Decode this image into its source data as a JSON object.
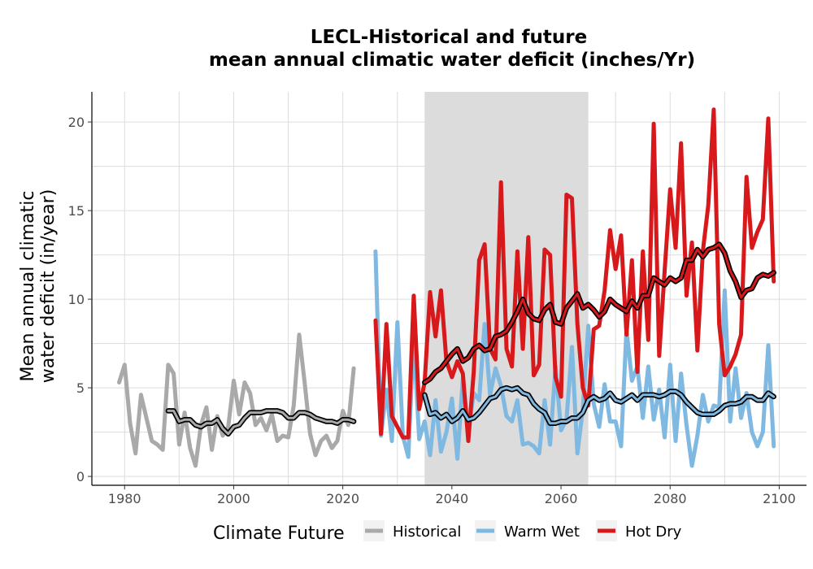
{
  "chart_data": {
    "type": "line",
    "title": "LECL-Historical and future",
    "subtitle": "mean annual climatic water deficit (inches/Yr)",
    "xlabel": "",
    "ylabel_line1": "Mean annual climatic",
    "ylabel_line2": "water deficit (in/year)",
    "xlim": [
      1974,
      2105
    ],
    "ylim": [
      -0.5,
      21.7
    ],
    "x_ticks": [
      1980,
      2000,
      2020,
      2040,
      2060,
      2080,
      2100
    ],
    "y_ticks": [
      0,
      5,
      10,
      15,
      20
    ],
    "grid": true,
    "shaded_period": [
      2035,
      2065
    ],
    "legend": {
      "title": "Climate Future",
      "position": "bottom",
      "entries": [
        "Historical",
        "Warm Wet",
        "Hot Dry"
      ]
    },
    "colors": {
      "Historical": "#a9a9a9",
      "Warm Wet": "#7fb8e0",
      "Hot Dry": "#d7191c",
      "smooth": "#000000",
      "shade": "#dcdcdc"
    },
    "series": [
      {
        "name": "Historical",
        "x": [
          1979,
          1980,
          1981,
          1982,
          1983,
          1984,
          1985,
          1986,
          1987,
          1988,
          1989,
          1990,
          1991,
          1992,
          1993,
          1994,
          1995,
          1996,
          1997,
          1998,
          1999,
          2000,
          2001,
          2002,
          2003,
          2004,
          2005,
          2006,
          2007,
          2008,
          2009,
          2010,
          2011,
          2012,
          2013,
          2014,
          2015,
          2016,
          2017,
          2018,
          2019,
          2020,
          2021,
          2022
        ],
        "values": [
          5.3,
          6.3,
          3.0,
          1.3,
          4.6,
          3.3,
          2.0,
          1.8,
          1.5,
          6.3,
          5.8,
          1.8,
          3.6,
          1.6,
          0.6,
          2.9,
          3.9,
          1.5,
          3.4,
          2.3,
          2.8,
          5.4,
          3.5,
          5.3,
          4.7,
          2.9,
          3.3,
          2.6,
          3.5,
          2.0,
          2.3,
          2.2,
          4.0,
          8.0,
          5.3,
          2.4,
          1.2,
          2.0,
          2.3,
          1.6,
          2.0,
          3.7,
          2.9,
          6.1
        ]
      },
      {
        "name": "Historical",
        "smooth": true,
        "x": [
          1988,
          1989,
          1990,
          1991,
          1992,
          1993,
          1994,
          1995,
          1996,
          1997,
          1998,
          1999,
          2000,
          2001,
          2002,
          2003,
          2004,
          2005,
          2006,
          2007,
          2008,
          2009,
          2010,
          2011,
          2012,
          2013,
          2014,
          2015,
          2016,
          2017,
          2018,
          2019,
          2020,
          2021,
          2022
        ],
        "values": [
          3.7,
          3.7,
          3.1,
          3.2,
          3.2,
          2.9,
          2.8,
          3.0,
          3.0,
          3.2,
          2.7,
          2.4,
          2.8,
          2.9,
          3.3,
          3.6,
          3.6,
          3.6,
          3.7,
          3.7,
          3.7,
          3.6,
          3.3,
          3.3,
          3.6,
          3.6,
          3.5,
          3.3,
          3.2,
          3.1,
          3.1,
          3.0,
          3.2,
          3.2,
          3.1
        ]
      },
      {
        "name": "Warm Wet",
        "x": [
          2026,
          2027,
          2028,
          2029,
          2030,
          2031,
          2032,
          2033,
          2034,
          2035,
          2036,
          2037,
          2038,
          2039,
          2040,
          2041,
          2042,
          2043,
          2044,
          2045,
          2046,
          2047,
          2048,
          2049,
          2050,
          2051,
          2052,
          2053,
          2054,
          2055,
          2056,
          2057,
          2058,
          2059,
          2060,
          2061,
          2062,
          2063,
          2064,
          2065,
          2066,
          2067,
          2068,
          2069,
          2070,
          2071,
          2072,
          2073,
          2074,
          2075,
          2076,
          2077,
          2078,
          2079,
          2080,
          2081,
          2082,
          2083,
          2084,
          2085,
          2086,
          2087,
          2088,
          2089,
          2090,
          2091,
          2092,
          2093,
          2094,
          2095,
          2096,
          2097,
          2098,
          2099
        ],
        "values": [
          12.7,
          2.3,
          4.9,
          2.0,
          8.7,
          2.3,
          1.1,
          7.9,
          2.1,
          3.1,
          1.2,
          4.3,
          1.4,
          2.5,
          4.4,
          1.0,
          5.5,
          2.5,
          4.7,
          4.3,
          8.6,
          4.6,
          6.1,
          5.1,
          3.4,
          3.1,
          4.3,
          1.8,
          1.9,
          1.7,
          1.3,
          4.3,
          1.8,
          6.2,
          2.6,
          3.2,
          7.3,
          1.3,
          3.8,
          8.5,
          4.1,
          2.8,
          5.2,
          3.1,
          3.1,
          1.7,
          8.3,
          5.4,
          6.2,
          3.3,
          6.2,
          3.2,
          4.9,
          2.2,
          6.3,
          2.0,
          5.8,
          2.9,
          0.6,
          2.3,
          4.6,
          3.1,
          4.0,
          3.9,
          10.5,
          3.1,
          6.1,
          3.3,
          4.7,
          2.5,
          1.7,
          2.5,
          7.4,
          1.7
        ]
      },
      {
        "name": "Warm Wet",
        "smooth": true,
        "x": [
          2035,
          2036,
          2037,
          2038,
          2039,
          2040,
          2041,
          2042,
          2043,
          2044,
          2045,
          2046,
          2047,
          2048,
          2049,
          2050,
          2051,
          2052,
          2053,
          2054,
          2055,
          2056,
          2057,
          2058,
          2059,
          2060,
          2061,
          2062,
          2063,
          2064,
          2065,
          2066,
          2067,
          2068,
          2069,
          2070,
          2071,
          2072,
          2073,
          2074,
          2075,
          2076,
          2077,
          2078,
          2079,
          2080,
          2081,
          2082,
          2083,
          2084,
          2085,
          2086,
          2087,
          2088,
          2089,
          2090,
          2091,
          2092,
          2093,
          2094,
          2095,
          2096,
          2097,
          2098,
          2099
        ],
        "values": [
          4.6,
          3.5,
          3.6,
          3.3,
          3.5,
          3.1,
          3.3,
          3.7,
          3.2,
          3.3,
          3.6,
          4.0,
          4.4,
          4.5,
          4.9,
          5.0,
          4.9,
          5.0,
          4.7,
          4.6,
          4.1,
          3.8,
          3.6,
          3.0,
          3.0,
          3.1,
          3.1,
          3.3,
          3.3,
          3.6,
          4.3,
          4.5,
          4.3,
          4.4,
          4.7,
          4.3,
          4.2,
          4.4,
          4.6,
          4.3,
          4.6,
          4.6,
          4.6,
          4.5,
          4.6,
          4.8,
          4.8,
          4.6,
          4.2,
          3.9,
          3.6,
          3.5,
          3.5,
          3.5,
          3.7,
          4.0,
          4.1,
          4.1,
          4.2,
          4.5,
          4.5,
          4.3,
          4.3,
          4.7,
          4.5
        ]
      },
      {
        "name": "Hot Dry",
        "x": [
          2026,
          2027,
          2028,
          2029,
          2030,
          2031,
          2032,
          2033,
          2034,
          2035,
          2036,
          2037,
          2038,
          2039,
          2040,
          2041,
          2042,
          2043,
          2044,
          2045,
          2046,
          2047,
          2048,
          2049,
          2050,
          2051,
          2052,
          2053,
          2054,
          2055,
          2056,
          2057,
          2058,
          2059,
          2060,
          2061,
          2062,
          2063,
          2064,
          2065,
          2066,
          2067,
          2068,
          2069,
          2070,
          2071,
          2072,
          2073,
          2074,
          2075,
          2076,
          2077,
          2078,
          2079,
          2080,
          2081,
          2082,
          2083,
          2084,
          2085,
          2086,
          2087,
          2088,
          2089,
          2090,
          2091,
          2092,
          2093,
          2094,
          2095,
          2096,
          2097,
          2098,
          2099
        ],
        "values": [
          8.8,
          2.4,
          8.6,
          3.4,
          2.8,
          2.2,
          2.2,
          10.2,
          3.8,
          5.3,
          10.4,
          7.9,
          10.5,
          6.5,
          5.6,
          6.5,
          5.8,
          2.0,
          5.9,
          12.2,
          13.1,
          7.2,
          6.6,
          16.6,
          7.2,
          6.2,
          12.7,
          7.2,
          13.5,
          5.7,
          6.3,
          12.8,
          12.5,
          5.6,
          4.5,
          15.9,
          15.7,
          8.6,
          5.0,
          4.0,
          8.3,
          8.5,
          10.5,
          13.9,
          11.7,
          13.6,
          8.0,
          12.2,
          5.9,
          12.7,
          7.7,
          19.9,
          6.8,
          11.6,
          16.2,
          12.9,
          18.8,
          10.2,
          13.2,
          7.1,
          12.7,
          15.3,
          20.7,
          8.6,
          5.7,
          6.2,
          6.9,
          8.0,
          16.9,
          12.9,
          13.8,
          14.5,
          20.2,
          11.0
        ]
      },
      {
        "name": "Hot Dry",
        "smooth": true,
        "x": [
          2035,
          2036,
          2037,
          2038,
          2039,
          2040,
          2041,
          2042,
          2043,
          2044,
          2045,
          2046,
          2047,
          2048,
          2049,
          2050,
          2051,
          2052,
          2053,
          2054,
          2055,
          2056,
          2057,
          2058,
          2059,
          2060,
          2061,
          2062,
          2063,
          2064,
          2065,
          2066,
          2067,
          2068,
          2069,
          2070,
          2071,
          2072,
          2073,
          2074,
          2075,
          2076,
          2077,
          2078,
          2079,
          2080,
          2081,
          2082,
          2083,
          2084,
          2085,
          2086,
          2087,
          2088,
          2089,
          2090,
          2091,
          2092,
          2093,
          2094,
          2095,
          2096,
          2097,
          2098,
          2099
        ],
        "values": [
          5.3,
          5.5,
          5.9,
          6.1,
          6.5,
          6.9,
          7.2,
          6.5,
          6.7,
          7.2,
          7.4,
          7.1,
          7.2,
          7.9,
          8.0,
          8.2,
          8.7,
          9.3,
          10.0,
          9.2,
          8.9,
          8.8,
          9.4,
          9.7,
          8.7,
          8.6,
          9.5,
          9.9,
          10.3,
          9.5,
          9.7,
          9.4,
          9.0,
          9.3,
          10.0,
          9.7,
          9.5,
          9.3,
          9.9,
          9.5,
          10.2,
          10.2,
          11.2,
          11.0,
          10.8,
          11.2,
          11.0,
          11.2,
          12.2,
          12.2,
          12.8,
          12.4,
          12.8,
          12.9,
          13.1,
          12.6,
          11.6,
          11.0,
          10.1,
          10.5,
          10.6,
          11.2,
          11.4,
          11.3,
          11.5
        ]
      }
    ]
  }
}
